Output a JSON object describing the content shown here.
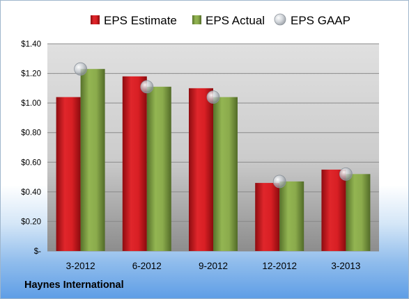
{
  "chart_data": {
    "type": "bar",
    "title": "",
    "xlabel": "",
    "ylabel": "",
    "categories": [
      "3-2012",
      "6-2012",
      "9-2012",
      "12-2012",
      "3-2013"
    ],
    "series": [
      {
        "name": "EPS Estimate",
        "kind": "bar",
        "color": "#c8161c",
        "values": [
          1.04,
          1.18,
          1.1,
          0.46,
          0.55
        ]
      },
      {
        "name": "EPS Actual",
        "kind": "bar",
        "color": "#7e9f43",
        "values": [
          1.23,
          1.11,
          1.04,
          0.47,
          0.52
        ]
      },
      {
        "name": "EPS GAAP",
        "kind": "marker",
        "color": "#b5bcc4",
        "values": [
          1.23,
          1.11,
          1.04,
          0.47,
          0.52
        ]
      }
    ],
    "ylim": [
      0,
      1.4
    ],
    "y_ticks": [
      0,
      0.2,
      0.4,
      0.6,
      0.8,
      1.0,
      1.2,
      1.4
    ],
    "y_tick_labels": [
      "$-",
      "$0.20",
      "$0.40",
      "$0.60",
      "$0.80",
      "$1.00",
      "$1.20",
      "$1.40"
    ],
    "grid": true,
    "legend_position": "top"
  },
  "company": "Haynes International"
}
